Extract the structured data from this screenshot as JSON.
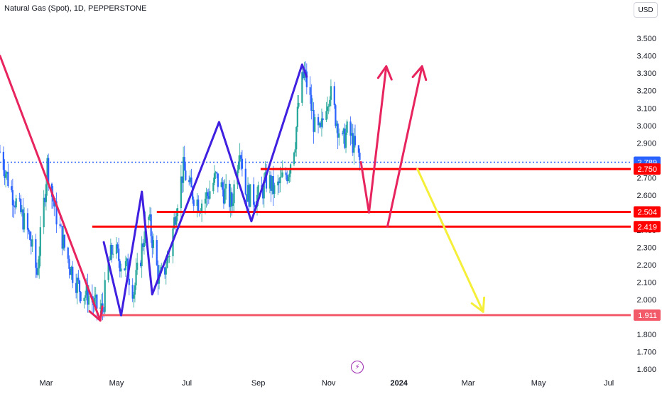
{
  "header": {
    "title": "Natural Gas (Spot), 1D, PEPPERSTONE",
    "currency_button": "USD"
  },
  "colors": {
    "candle_up": "#26a69a",
    "candle_down": "#2962ff",
    "current_price_line": "#2962ff",
    "level_line": "#ff0000",
    "level_line_soft": "#f25a6a",
    "wave_path": "#3f1fe0",
    "decline_arrow": "#e8245e",
    "bull_arrow": "#e8245e",
    "bear_arrow": "#f5ef3a",
    "axis_text": "#131722",
    "brand_icon": "#9c27b0"
  },
  "brand_icon": {
    "name": "lightning-bolt-icon",
    "glyph": "⚡"
  },
  "chart_data": {
    "type": "candlestick",
    "title": "Natural Gas (Spot), 1D, PEPPERSTONE",
    "y_axis": {
      "ticks": [
        1.6,
        1.7,
        1.8,
        1.9,
        2.0,
        2.1,
        2.2,
        2.3,
        2.4,
        2.5,
        2.6,
        2.7,
        2.8,
        2.9,
        3.0,
        3.1,
        3.2,
        3.3,
        3.4,
        3.5
      ],
      "tick_labels": [
        "1.600",
        "1.700",
        "1.800",
        "1.900",
        "2.000",
        "2.100",
        "2.200",
        "2.300",
        "2.400",
        "2.500",
        "2.600",
        "2.700",
        "2.800",
        "2.900",
        "3.000",
        "3.100",
        "3.200",
        "3.300",
        "3.400",
        "3.500"
      ],
      "range": [
        1.56,
        3.68
      ]
    },
    "x_axis": {
      "range": [
        "2023-01-20",
        "2024-07-20"
      ],
      "ticks": [
        {
          "date": "2023-03-01",
          "label": "Mar",
          "bold": false
        },
        {
          "date": "2023-05-01",
          "label": "May",
          "bold": false
        },
        {
          "date": "2023-07-01",
          "label": "Jul",
          "bold": false
        },
        {
          "date": "2023-09-01",
          "label": "Sep",
          "bold": false
        },
        {
          "date": "2023-11-01",
          "label": "Nov",
          "bold": false
        },
        {
          "date": "2024-01-01",
          "label": "2024",
          "bold": true
        },
        {
          "date": "2024-03-01",
          "label": "Mar",
          "bold": false
        },
        {
          "date": "2024-05-01",
          "label": "May",
          "bold": false
        },
        {
          "date": "2024-07-01",
          "label": "Jul",
          "bold": false
        }
      ]
    },
    "price_series": [
      [
        "2023-01-20",
        2.85
      ],
      [
        "2023-01-30",
        2.62
      ],
      [
        "2023-02-08",
        2.48
      ],
      [
        "2023-02-15",
        2.35
      ],
      [
        "2023-02-21",
        2.15
      ],
      [
        "2023-02-27",
        2.55
      ],
      [
        "2023-03-02",
        2.78
      ],
      [
        "2023-03-06",
        2.6
      ],
      [
        "2023-03-10",
        2.48
      ],
      [
        "2023-03-17",
        2.3
      ],
      [
        "2023-03-24",
        2.15
      ],
      [
        "2023-03-31",
        2.05
      ],
      [
        "2023-04-07",
        2.02
      ],
      [
        "2023-04-13",
        1.96
      ],
      [
        "2023-04-19",
        1.94
      ],
      [
        "2023-04-24",
        2.2
      ],
      [
        "2023-04-28",
        2.3
      ],
      [
        "2023-05-04",
        2.22
      ],
      [
        "2023-05-10",
        2.18
      ],
      [
        "2023-05-16",
        2.05
      ],
      [
        "2023-05-22",
        2.25
      ],
      [
        "2023-05-28",
        2.5
      ],
      [
        "2023-06-01",
        2.35
      ],
      [
        "2023-06-07",
        2.1
      ],
      [
        "2023-06-12",
        2.18
      ],
      [
        "2023-06-17",
        2.3
      ],
      [
        "2023-06-22",
        2.55
      ],
      [
        "2023-06-28",
        2.75
      ],
      [
        "2023-07-05",
        2.62
      ],
      [
        "2023-07-12",
        2.55
      ],
      [
        "2023-07-19",
        2.6
      ],
      [
        "2023-07-26",
        2.7
      ],
      [
        "2023-08-02",
        2.62
      ],
      [
        "2023-08-09",
        2.55
      ],
      [
        "2023-08-16",
        2.9
      ],
      [
        "2023-08-21",
        2.62
      ],
      [
        "2023-08-27",
        2.58
      ],
      [
        "2023-09-03",
        2.6
      ],
      [
        "2023-09-09",
        2.7
      ],
      [
        "2023-09-15",
        2.62
      ],
      [
        "2023-09-21",
        2.68
      ],
      [
        "2023-09-27",
        2.74
      ],
      [
        "2023-10-03",
        2.92
      ],
      [
        "2023-10-07",
        3.2
      ],
      [
        "2023-10-11",
        3.3
      ],
      [
        "2023-10-15",
        3.18
      ],
      [
        "2023-10-20",
        2.98
      ],
      [
        "2023-10-25",
        2.95
      ],
      [
        "2023-10-29",
        3.12
      ],
      [
        "2023-11-02",
        3.2
      ],
      [
        "2023-11-07",
        3.05
      ],
      [
        "2023-11-13",
        2.9
      ],
      [
        "2023-11-18",
        2.98
      ],
      [
        "2023-11-23",
        2.88
      ],
      [
        "2023-11-28",
        2.79
      ]
    ],
    "current_price": {
      "value": 2.789,
      "label": "2.789"
    },
    "horizontal_levels": [
      {
        "value": 2.75,
        "label": "2.750",
        "from": "2023-09-03",
        "line": "level_line"
      },
      {
        "value": 2.504,
        "label": "2.504",
        "from": "2023-06-05",
        "line": "level_line"
      },
      {
        "value": 2.419,
        "label": "2.419",
        "from": "2023-04-10",
        "line": "level_line"
      },
      {
        "value": 1.911,
        "label": "1.911",
        "from": "2023-04-17",
        "line": "level_line_soft"
      }
    ],
    "annotations": {
      "decline_arrow": [
        [
          "2023-01-20",
          3.4
        ],
        [
          "2023-04-17",
          1.88
        ]
      ],
      "wave_path": [
        [
          "2023-04-20",
          2.33
        ],
        [
          "2023-05-05",
          1.91
        ],
        [
          "2023-05-23",
          2.62
        ],
        [
          "2023-06-01",
          2.03
        ],
        [
          "2023-07-29",
          3.02
        ],
        [
          "2023-08-26",
          2.45
        ],
        [
          "2023-10-09",
          3.35
        ],
        [
          "2023-10-13",
          3.28
        ]
      ],
      "bull_scenario_1": [
        [
          "2023-11-29",
          2.79
        ],
        [
          "2023-12-06",
          2.5
        ],
        [
          "2023-12-21",
          3.34
        ]
      ],
      "bull_scenario_2": [
        [
          "2023-12-22",
          2.42
        ],
        [
          "2024-01-21",
          3.34
        ]
      ],
      "bear_scenario": [
        [
          "2024-01-17",
          2.75
        ],
        [
          "2024-03-14",
          1.93
        ]
      ]
    }
  }
}
